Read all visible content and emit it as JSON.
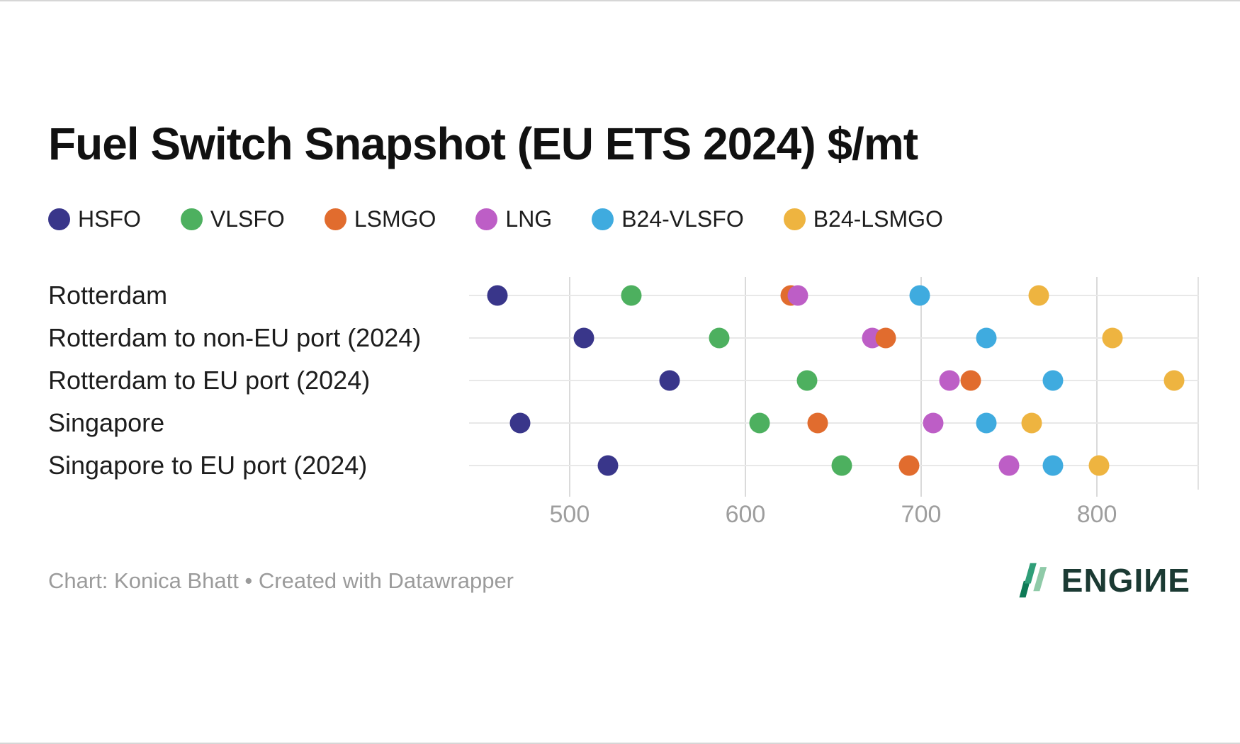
{
  "title": "Fuel Switch Snapshot (EU ETS 2024) $/mt",
  "legend": {
    "items": [
      {
        "label": "HSFO",
        "color": "#39368a"
      },
      {
        "label": "VLSFO",
        "color": "#4db05f"
      },
      {
        "label": "LSMGO",
        "color": "#e16c2e"
      },
      {
        "label": "LNG",
        "color": "#bd5ec6"
      },
      {
        "label": "B24-VLSFO",
        "color": "#3fabdf"
      },
      {
        "label": "B24-LSMGO",
        "color": "#eeb440"
      }
    ]
  },
  "chart_data": {
    "type": "scatter",
    "title": "Fuel Switch Snapshot (EU ETS 2024) $/mt",
    "unit": "$/mt",
    "categories": [
      "Rotterdam",
      "Rotterdam to non-EU port (2024)",
      "Rotterdam to EU port (2024)",
      "Singapore",
      "Singapore to EU port (2024)"
    ],
    "series": [
      {
        "name": "HSFO",
        "color": "#39368a",
        "values": [
          459,
          508,
          557,
          472,
          522
        ]
      },
      {
        "name": "VLSFO",
        "color": "#4db05f",
        "values": [
          535,
          585,
          635,
          608,
          655
        ]
      },
      {
        "name": "LSMGO",
        "color": "#e16c2e",
        "values": [
          626,
          680,
          728,
          641,
          693
        ]
      },
      {
        "name": "LNG",
        "color": "#bd5ec6",
        "values": [
          630,
          672,
          716,
          707,
          750
        ]
      },
      {
        "name": "B24-VLSFO",
        "color": "#3fabdf",
        "values": [
          699,
          737,
          775,
          737,
          775
        ]
      },
      {
        "name": "B24-LSMGO",
        "color": "#eeb440",
        "values": [
          767,
          809,
          844,
          763,
          801
        ]
      }
    ],
    "xlim": [
      442,
      858
    ],
    "x_ticks": [
      500,
      600,
      700,
      800
    ],
    "grid": true,
    "legend_position": "top",
    "grid_color_vertical": "#dadada",
    "grid_color_horizontal": "#e8e8e8",
    "tick_label_color": "#9e9e9e"
  },
  "footer": {
    "credit": "Chart: Konica Bhatt • Created with Datawrapper"
  },
  "logo": {
    "text": "ENGIИE",
    "text_color": "#1b3a33",
    "icon_colors": [
      "#0e7a56",
      "#2f9e78",
      "#8fcaa8"
    ]
  }
}
